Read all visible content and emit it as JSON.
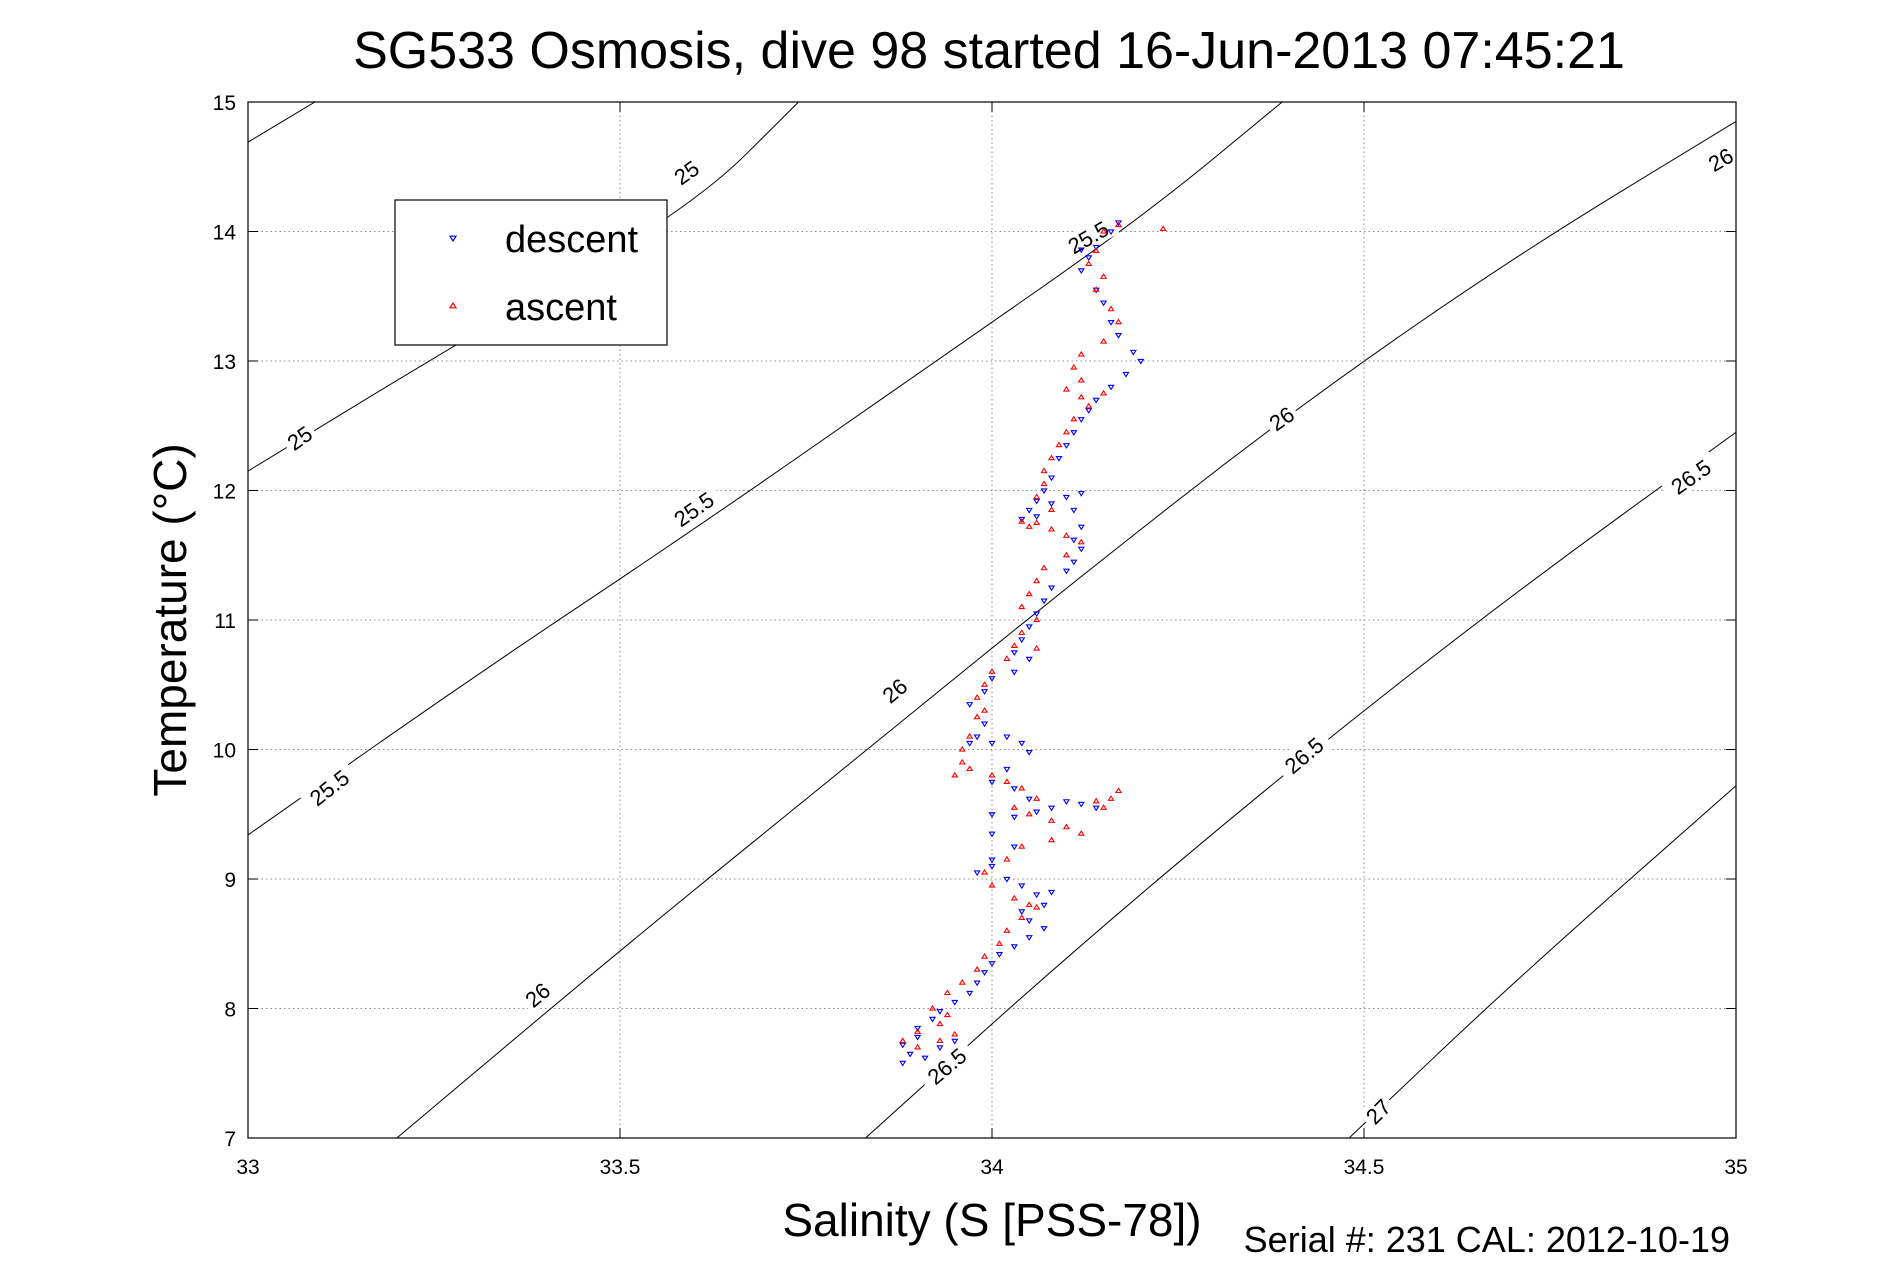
{
  "chart_data": {
    "type": "scatter",
    "title": "SG533 Osmosis, dive 98 started 16-Jun-2013 07:45:21",
    "xlabel": "Salinity (S [PSS-78])",
    "ylabel": "Temperature (°C)",
    "xlim": [
      33,
      35
    ],
    "ylim": [
      7,
      15
    ],
    "xticks": [
      "33",
      "33.5",
      "34",
      "34.5",
      "35"
    ],
    "yticks": [
      "7",
      "8",
      "9",
      "10",
      "11",
      "12",
      "13",
      "14",
      "15"
    ],
    "grid": true,
    "legend_position": "top-left",
    "footer": "Serial #: 231  CAL: 2012-10-19",
    "density_contours": {
      "levels": [
        25,
        25.5,
        26,
        26.5,
        27
      ],
      "lines": [
        {
          "level": 25,
          "points": [
            [
              33,
              14.69
            ],
            [
              33.09,
              15.0
            ]
          ]
        },
        {
          "level": 25,
          "points": [
            [
              33,
              12.15
            ],
            [
              33.3,
              13.2
            ],
            [
              33.6,
              14.2
            ],
            [
              33.74,
              15.0
            ]
          ]
        },
        {
          "level": 25.5,
          "points": [
            [
              33,
              9.34
            ],
            [
              33.3,
              10.55
            ],
            [
              33.6,
              11.7
            ],
            [
              33.9,
              12.9
            ],
            [
              34.2,
              14.1
            ],
            [
              34.39,
              15.0
            ]
          ]
        },
        {
          "level": 26,
          "points": [
            [
              33.2,
              7.0
            ],
            [
              33.5,
              8.45
            ],
            [
              33.8,
              9.85
            ],
            [
              34.1,
              11.25
            ],
            [
              34.4,
              12.6
            ],
            [
              34.7,
              13.8
            ],
            [
              35.0,
              14.85
            ]
          ]
        },
        {
          "level": 26.5,
          "points": [
            [
              33.83,
              7.0
            ],
            [
              34.1,
              8.4
            ],
            [
              34.4,
              9.85
            ],
            [
              34.7,
              11.2
            ],
            [
              35.0,
              12.45
            ]
          ]
        },
        {
          "level": 27,
          "points": [
            [
              34.48,
              7.0
            ],
            [
              34.7,
              8.2
            ],
            [
              35.0,
              9.72
            ]
          ]
        }
      ],
      "labels": [
        {
          "text": "25",
          "s": 33.59,
          "t": 14.45,
          "angle": -35
        },
        {
          "text": "25",
          "s": 33.07,
          "t": 12.4,
          "angle": -35
        },
        {
          "text": "25.5",
          "s": 34.13,
          "t": 13.95,
          "angle": -30
        },
        {
          "text": "25.5",
          "s": 33.6,
          "t": 11.85,
          "angle": -35
        },
        {
          "text": "25.5",
          "s": 33.11,
          "t": 9.7,
          "angle": -38
        },
        {
          "text": "26",
          "s": 34.98,
          "t": 14.55,
          "angle": -30
        },
        {
          "text": "26",
          "s": 34.39,
          "t": 12.55,
          "angle": -35
        },
        {
          "text": "26",
          "s": 33.87,
          "t": 10.45,
          "angle": -40
        },
        {
          "text": "26",
          "s": 33.39,
          "t": 8.1,
          "angle": -40
        },
        {
          "text": "26.5",
          "s": 34.94,
          "t": 12.1,
          "angle": -35
        },
        {
          "text": "26.5",
          "s": 34.42,
          "t": 9.95,
          "angle": -40
        },
        {
          "text": "26.5",
          "s": 33.94,
          "t": 7.55,
          "angle": -40
        },
        {
          "text": "27",
          "s": 34.52,
          "t": 7.2,
          "angle": -45
        }
      ]
    },
    "series": [
      {
        "name": "descent",
        "color": "#0000ff",
        "marker": "triangle-down",
        "points": [
          [
            34.17,
            14.07
          ],
          [
            34.16,
            14.0
          ],
          [
            34.14,
            13.88
          ],
          [
            34.12,
            13.86
          ],
          [
            34.13,
            13.8
          ],
          [
            34.12,
            13.7
          ],
          [
            34.14,
            13.55
          ],
          [
            34.15,
            13.45
          ],
          [
            34.16,
            13.3
          ],
          [
            34.17,
            13.2
          ],
          [
            34.19,
            13.07
          ],
          [
            34.2,
            13.0
          ],
          [
            34.18,
            12.9
          ],
          [
            34.16,
            12.8
          ],
          [
            34.14,
            12.7
          ],
          [
            34.13,
            12.62
          ],
          [
            34.12,
            12.55
          ],
          [
            34.11,
            12.45
          ],
          [
            34.1,
            12.35
          ],
          [
            34.09,
            12.25
          ],
          [
            34.08,
            12.1
          ],
          [
            34.07,
            12.0
          ],
          [
            34.06,
            11.92
          ],
          [
            34.05,
            11.85
          ],
          [
            34.04,
            11.78
          ],
          [
            34.06,
            11.8
          ],
          [
            34.08,
            11.9
          ],
          [
            34.1,
            11.95
          ],
          [
            34.12,
            11.98
          ],
          [
            34.11,
            11.85
          ],
          [
            34.12,
            11.72
          ],
          [
            34.11,
            11.62
          ],
          [
            34.12,
            11.55
          ],
          [
            34.11,
            11.45
          ],
          [
            34.1,
            11.38
          ],
          [
            34.08,
            11.25
          ],
          [
            34.07,
            11.15
          ],
          [
            34.06,
            11.05
          ],
          [
            34.05,
            10.95
          ],
          [
            34.04,
            10.85
          ],
          [
            34.03,
            10.75
          ],
          [
            34.05,
            10.7
          ],
          [
            34.03,
            10.6
          ],
          [
            34.0,
            10.55
          ],
          [
            33.99,
            10.45
          ],
          [
            33.97,
            10.35
          ],
          [
            33.99,
            10.2
          ],
          [
            33.97,
            10.05
          ],
          [
            33.98,
            10.1
          ],
          [
            34.0,
            10.05
          ],
          [
            34.02,
            10.1
          ],
          [
            34.04,
            10.05
          ],
          [
            34.05,
            9.98
          ],
          [
            34.02,
            9.85
          ],
          [
            34.0,
            9.75
          ],
          [
            34.03,
            9.7
          ],
          [
            34.05,
            9.62
          ],
          [
            34.08,
            9.55
          ],
          [
            34.1,
            9.6
          ],
          [
            34.12,
            9.58
          ],
          [
            34.14,
            9.55
          ],
          [
            34.06,
            9.52
          ],
          [
            34.03,
            9.48
          ],
          [
            34.0,
            9.5
          ],
          [
            34.0,
            9.35
          ],
          [
            34.03,
            9.25
          ],
          [
            34.0,
            9.15
          ],
          [
            33.98,
            9.05
          ],
          [
            34.0,
            9.1
          ],
          [
            34.02,
            9.0
          ],
          [
            34.04,
            8.95
          ],
          [
            34.06,
            8.88
          ],
          [
            34.08,
            8.9
          ],
          [
            34.07,
            8.8
          ],
          [
            34.04,
            8.75
          ],
          [
            34.05,
            8.68
          ],
          [
            34.07,
            8.62
          ],
          [
            34.05,
            8.55
          ],
          [
            34.03,
            8.48
          ],
          [
            34.01,
            8.42
          ],
          [
            34.0,
            8.35
          ],
          [
            33.99,
            8.28
          ],
          [
            33.98,
            8.2
          ],
          [
            33.97,
            8.12
          ],
          [
            33.95,
            8.05
          ],
          [
            33.93,
            7.98
          ],
          [
            33.92,
            7.92
          ],
          [
            33.9,
            7.85
          ],
          [
            33.9,
            7.78
          ],
          [
            33.88,
            7.72
          ],
          [
            33.89,
            7.65
          ],
          [
            33.88,
            7.58
          ],
          [
            33.91,
            7.62
          ],
          [
            33.93,
            7.7
          ],
          [
            33.95,
            7.75
          ]
        ]
      },
      {
        "name": "ascent",
        "color": "#ff0000",
        "marker": "triangle-up",
        "points": [
          [
            34.17,
            14.05
          ],
          [
            34.23,
            14.02
          ],
          [
            34.15,
            14.0
          ],
          [
            34.14,
            13.85
          ],
          [
            34.13,
            13.75
          ],
          [
            34.15,
            13.65
          ],
          [
            34.14,
            13.55
          ],
          [
            34.16,
            13.4
          ],
          [
            34.17,
            13.3
          ],
          [
            34.15,
            13.15
          ],
          [
            34.12,
            13.05
          ],
          [
            34.11,
            12.95
          ],
          [
            34.12,
            12.85
          ],
          [
            34.1,
            12.78
          ],
          [
            34.12,
            12.72
          ],
          [
            34.15,
            12.75
          ],
          [
            34.13,
            12.65
          ],
          [
            34.11,
            12.55
          ],
          [
            34.1,
            12.45
          ],
          [
            34.09,
            12.35
          ],
          [
            34.08,
            12.25
          ],
          [
            34.07,
            12.15
          ],
          [
            34.07,
            12.05
          ],
          [
            34.06,
            11.95
          ],
          [
            34.08,
            11.85
          ],
          [
            34.06,
            11.75
          ],
          [
            34.05,
            11.72
          ],
          [
            34.04,
            11.76
          ],
          [
            34.08,
            11.7
          ],
          [
            34.1,
            11.65
          ],
          [
            34.12,
            11.6
          ],
          [
            34.1,
            11.5
          ],
          [
            34.07,
            11.4
          ],
          [
            34.06,
            11.3
          ],
          [
            34.05,
            11.2
          ],
          [
            34.04,
            11.1
          ],
          [
            34.06,
            11.0
          ],
          [
            34.04,
            10.9
          ],
          [
            34.03,
            10.8
          ],
          [
            34.06,
            10.78
          ],
          [
            34.02,
            10.7
          ],
          [
            34.0,
            10.6
          ],
          [
            33.99,
            10.5
          ],
          [
            33.98,
            10.4
          ],
          [
            33.99,
            10.3
          ],
          [
            33.98,
            10.25
          ],
          [
            33.97,
            10.1
          ],
          [
            33.96,
            10.0
          ],
          [
            33.96,
            9.9
          ],
          [
            33.95,
            9.8
          ],
          [
            33.97,
            9.85
          ],
          [
            34.0,
            9.8
          ],
          [
            34.02,
            9.75
          ],
          [
            34.04,
            9.7
          ],
          [
            34.06,
            9.62
          ],
          [
            34.03,
            9.55
          ],
          [
            34.05,
            9.5
          ],
          [
            34.08,
            9.45
          ],
          [
            34.1,
            9.4
          ],
          [
            34.12,
            9.35
          ],
          [
            34.15,
            9.55
          ],
          [
            34.16,
            9.62
          ],
          [
            34.17,
            9.68
          ],
          [
            34.14,
            9.6
          ],
          [
            34.08,
            9.3
          ],
          [
            34.04,
            9.25
          ],
          [
            34.02,
            9.15
          ],
          [
            33.99,
            9.05
          ],
          [
            34.0,
            8.95
          ],
          [
            34.03,
            8.85
          ],
          [
            34.05,
            8.8
          ],
          [
            34.06,
            8.78
          ],
          [
            34.04,
            8.7
          ],
          [
            34.02,
            8.6
          ],
          [
            34.01,
            8.5
          ],
          [
            33.99,
            8.4
          ],
          [
            33.98,
            8.3
          ],
          [
            33.96,
            8.2
          ],
          [
            33.94,
            8.12
          ],
          [
            33.92,
            8.0
          ],
          [
            33.94,
            7.95
          ],
          [
            33.93,
            7.88
          ],
          [
            33.9,
            7.82
          ],
          [
            33.88,
            7.75
          ],
          [
            33.9,
            7.7
          ],
          [
            33.93,
            7.75
          ],
          [
            33.95,
            7.8
          ]
        ]
      }
    ]
  }
}
